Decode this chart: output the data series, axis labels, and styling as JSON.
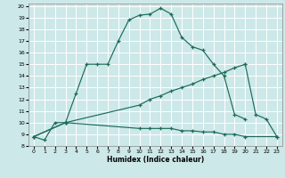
{
  "xlabel": "Humidex (Indice chaleur)",
  "xlim": [
    -0.5,
    23.5
  ],
  "ylim": [
    8,
    20.2
  ],
  "xticks": [
    0,
    1,
    2,
    3,
    4,
    5,
    6,
    7,
    8,
    9,
    10,
    11,
    12,
    13,
    14,
    15,
    16,
    17,
    18,
    19,
    20,
    21,
    22,
    23
  ],
  "yticks": [
    8,
    9,
    10,
    11,
    12,
    13,
    14,
    15,
    16,
    17,
    18,
    19,
    20
  ],
  "bg_color": "#cde8e8",
  "grid_color": "#b0d4d4",
  "line_color": "#1a6b5a",
  "line1_x": [
    0,
    1,
    2,
    3,
    4,
    5,
    6,
    7,
    8,
    9,
    10,
    11,
    12,
    13,
    14,
    15,
    16,
    17,
    18,
    19,
    20
  ],
  "line1_y": [
    8.8,
    8.5,
    10.0,
    10.0,
    12.5,
    15.0,
    15.0,
    15.0,
    17.0,
    18.8,
    19.2,
    19.3,
    19.8,
    19.3,
    17.3,
    16.5,
    16.2,
    15.0,
    14.0,
    10.7,
    10.3
  ],
  "line2_x": [
    0,
    3,
    10,
    11,
    12,
    13,
    14,
    15,
    16,
    17,
    18,
    19,
    20,
    20,
    21,
    22,
    23
  ],
  "line2_y": [
    8.8,
    10.0,
    11.5,
    12.0,
    12.3,
    12.7,
    13.0,
    13.3,
    13.7,
    14.0,
    14.3,
    14.7,
    15.0,
    15.0,
    10.7,
    10.3,
    8.8
  ],
  "line3_x": [
    0,
    3,
    10,
    11,
    12,
    13,
    14,
    15,
    16,
    17,
    18,
    19,
    20,
    23
  ],
  "line3_y": [
    8.8,
    10.0,
    9.5,
    9.5,
    9.5,
    9.5,
    9.3,
    9.3,
    9.2,
    9.2,
    9.0,
    9.0,
    8.8,
    8.8
  ]
}
